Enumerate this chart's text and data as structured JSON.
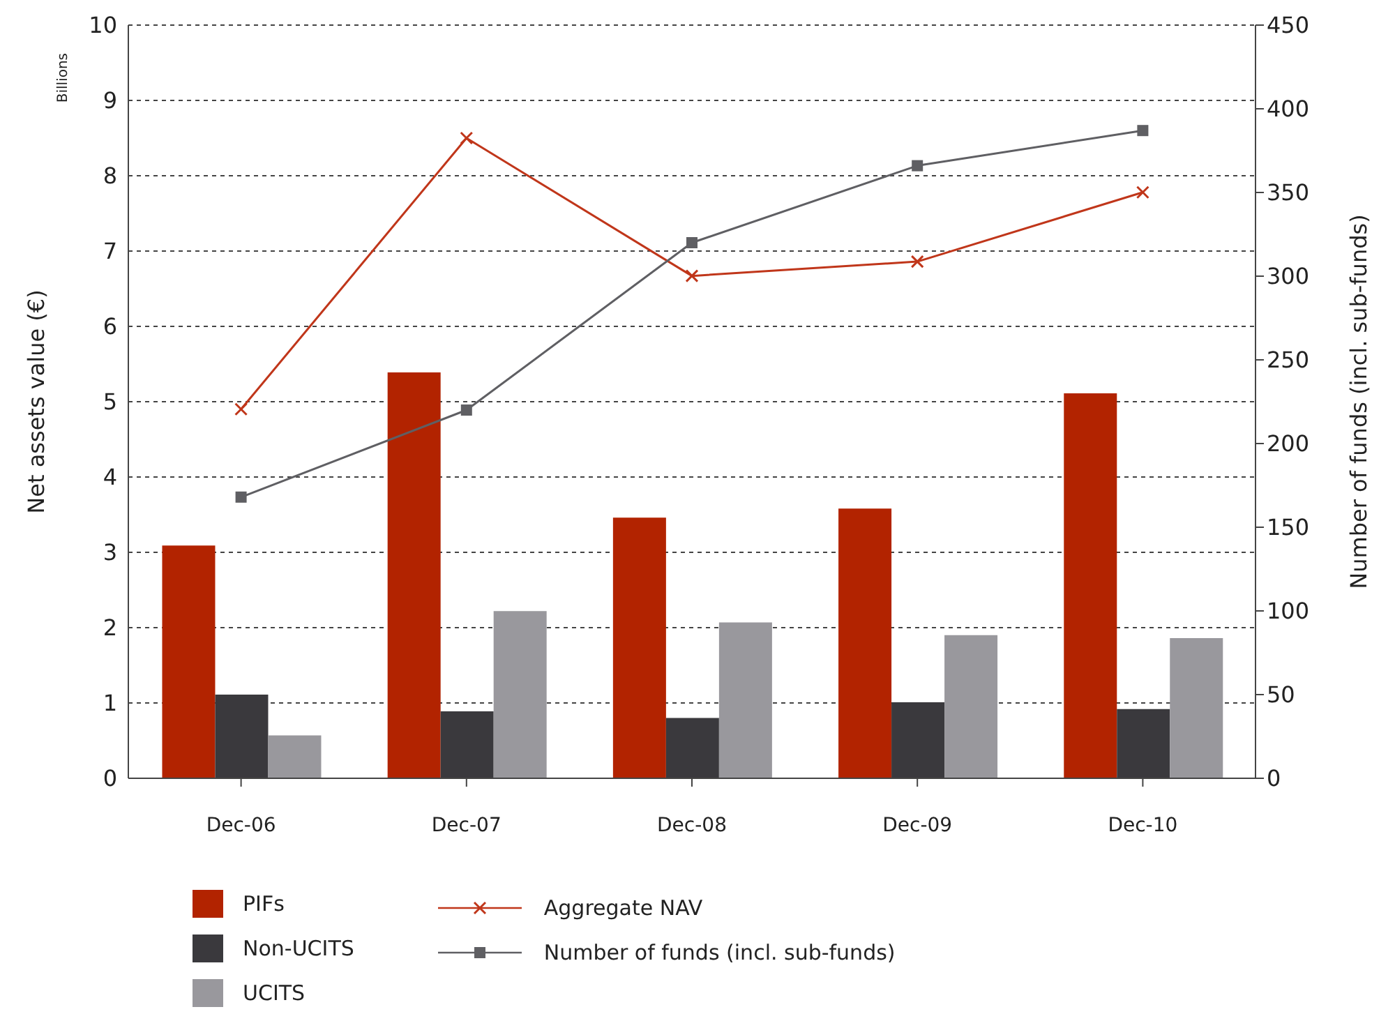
{
  "chart_data": {
    "type": "bar",
    "categories": [
      "Dec-06",
      "Dec-07",
      "Dec-08",
      "Dec-09",
      "Dec-10"
    ],
    "ylabel": "Net assets value (€)",
    "y2label": "Number of funds (incl. sub-funds)",
    "annotations": [
      "Billions"
    ],
    "ylim": [
      0,
      10
    ],
    "yticks": [
      0,
      1,
      2,
      3,
      4,
      5,
      6,
      7,
      8,
      9,
      10
    ],
    "y2lim": [
      0,
      450
    ],
    "y2ticks": [
      0,
      50,
      100,
      150,
      200,
      250,
      300,
      350,
      400,
      450
    ],
    "grid": "y",
    "legend": "bottom",
    "series": [
      {
        "name": "PIFs",
        "color": "#b22300",
        "values": [
          3.09,
          5.39,
          3.46,
          3.58,
          5.11
        ]
      },
      {
        "name": "Non-UCITS",
        "color": "#3a393d",
        "values": [
          1.11,
          0.89,
          0.8,
          1.01,
          0.92
        ]
      },
      {
        "name": "UCITS",
        "color": "#99989d",
        "values": [
          0.57,
          2.22,
          2.07,
          1.9,
          1.86
        ]
      },
      {
        "name": "Aggregate NAV",
        "type": "line",
        "marker": "cross",
        "color": "#c0361a",
        "values": [
          4.9,
          8.5,
          6.67,
          6.86,
          7.78
        ]
      },
      {
        "name": "Number of funds (incl. sub-funds)",
        "type": "line",
        "axis": "y2",
        "marker": "square",
        "color": "#5f5f63",
        "values": [
          168,
          220,
          320,
          366,
          387
        ]
      }
    ]
  }
}
